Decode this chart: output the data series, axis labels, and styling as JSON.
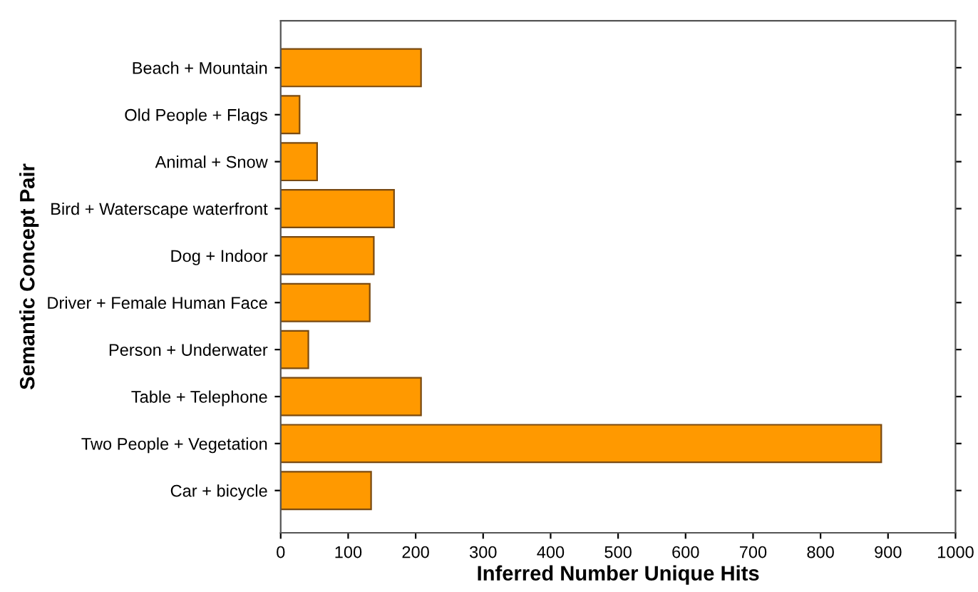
{
  "chart_data": {
    "type": "bar",
    "orientation": "horizontal",
    "xlabel": "Inferred Number Unique Hits",
    "ylabel": "Semantic Concept Pair",
    "categories": [
      "Beach + Mountain",
      "Old People + Flags",
      "Animal + Snow",
      "Bird + Waterscape waterfront",
      "Dog + Indoor",
      "Driver + Female Human Face",
      "Person + Underwater",
      "Table + Telephone",
      "Two People + Vegetation",
      "Car + bicycle"
    ],
    "values": [
      208,
      28,
      54,
      168,
      138,
      132,
      41,
      208,
      890,
      134
    ],
    "color": "#ff9900",
    "xlim": [
      0,
      1000
    ],
    "xticks": [
      0,
      100,
      200,
      300,
      400,
      500,
      600,
      700,
      800,
      900,
      1000
    ],
    "grid": false
  }
}
